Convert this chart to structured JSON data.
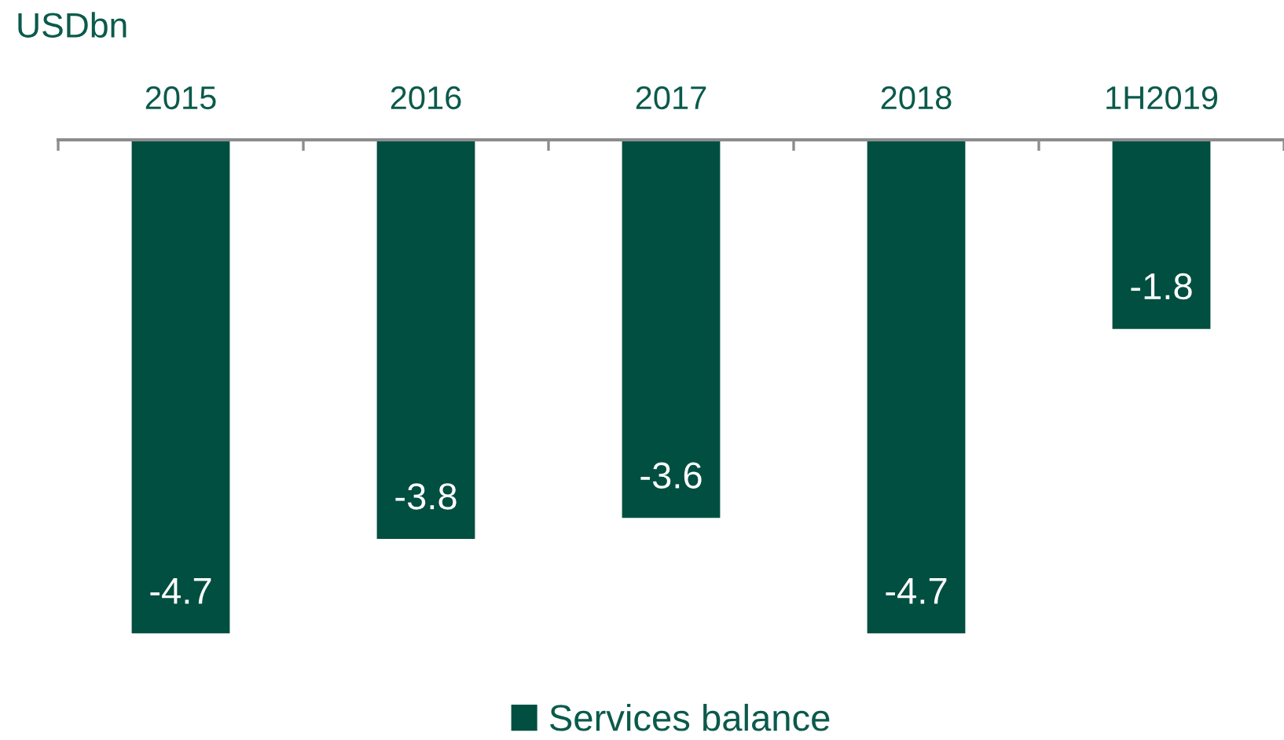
{
  "chart_data": {
    "type": "bar",
    "ylabel": "USDbn",
    "categories": [
      "2015",
      "2016",
      "2017",
      "2018",
      "1H2019"
    ],
    "series": [
      {
        "name": "Services balance",
        "color": "#004f41",
        "values": [
          -4.7,
          -3.8,
          -3.6,
          -4.7,
          -1.8
        ]
      }
    ],
    "data_labels": true,
    "legend": "bottom",
    "tick_labels": "x"
  }
}
